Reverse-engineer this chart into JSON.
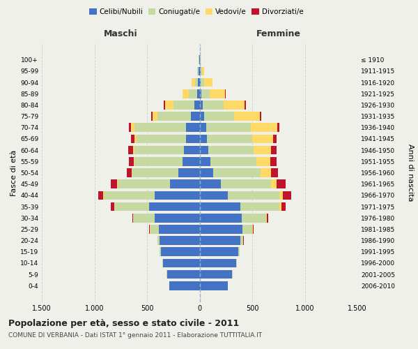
{
  "age_groups": [
    "0-4",
    "5-9",
    "10-14",
    "15-19",
    "20-24",
    "25-29",
    "30-34",
    "35-39",
    "40-44",
    "45-49",
    "50-54",
    "55-59",
    "60-64",
    "65-69",
    "70-74",
    "75-79",
    "80-84",
    "85-89",
    "90-94",
    "95-99",
    "100+"
  ],
  "birth_years": [
    "2006-2010",
    "2001-2005",
    "1996-2000",
    "1991-1995",
    "1986-1990",
    "1981-1985",
    "1976-1980",
    "1971-1975",
    "1966-1970",
    "1961-1965",
    "1956-1960",
    "1951-1955",
    "1946-1950",
    "1941-1945",
    "1936-1940",
    "1931-1935",
    "1926-1930",
    "1921-1925",
    "1916-1920",
    "1911-1915",
    "≤ 1910"
  ],
  "maschi": {
    "celibi": [
      290,
      310,
      350,
      370,
      380,
      390,
      430,
      480,
      430,
      280,
      200,
      160,
      150,
      130,
      130,
      80,
      50,
      20,
      15,
      10,
      5
    ],
    "coniugati": [
      1,
      2,
      5,
      10,
      20,
      80,
      200,
      330,
      480,
      500,
      440,
      460,
      470,
      470,
      490,
      320,
      200,
      80,
      30,
      10,
      2
    ],
    "vedovi": [
      0,
      0,
      0,
      0,
      1,
      2,
      2,
      3,
      5,
      5,
      5,
      5,
      10,
      20,
      30,
      50,
      80,
      60,
      30,
      5,
      1
    ],
    "divorziati": [
      0,
      0,
      0,
      0,
      2,
      5,
      10,
      30,
      50,
      60,
      50,
      50,
      50,
      30,
      20,
      10,
      10,
      5,
      0,
      0,
      0
    ]
  },
  "femmine": {
    "nubili": [
      270,
      310,
      350,
      370,
      390,
      410,
      400,
      390,
      270,
      200,
      130,
      100,
      80,
      70,
      60,
      40,
      30,
      15,
      10,
      10,
      5
    ],
    "coniugate": [
      1,
      2,
      5,
      10,
      25,
      90,
      230,
      370,
      490,
      480,
      450,
      440,
      430,
      430,
      430,
      290,
      200,
      80,
      30,
      10,
      2
    ],
    "vedove": [
      0,
      0,
      0,
      1,
      2,
      5,
      10,
      15,
      30,
      50,
      100,
      130,
      170,
      200,
      250,
      240,
      200,
      150,
      80,
      20,
      3
    ],
    "divorziate": [
      0,
      0,
      0,
      1,
      2,
      5,
      15,
      40,
      80,
      90,
      65,
      60,
      55,
      30,
      20,
      15,
      10,
      5,
      2,
      0,
      0
    ]
  },
  "colors": {
    "celibi": "#4472C4",
    "coniugati": "#C5D9A0",
    "vedovi": "#FFD966",
    "divorziati": "#C0142C"
  },
  "xlim": 1500,
  "title": "Popolazione per età, sesso e stato civile - 2011",
  "subtitle": "COMUNE DI VERBANIA - Dati ISTAT 1° gennaio 2011 - Elaborazione TUTTITALIA.IT",
  "ylabel": "Fasce di età",
  "ylabel_right": "Anni di nascita",
  "xlabel_maschi": "Maschi",
  "xlabel_femmine": "Femmine",
  "bg_color": "#f0f0eb",
  "grid_color": "#cccccc"
}
